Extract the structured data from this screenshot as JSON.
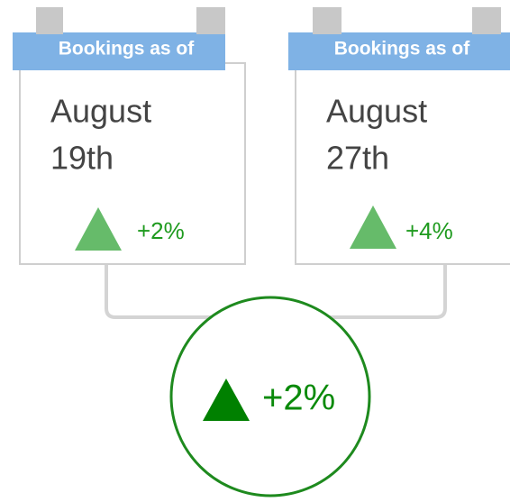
{
  "cards": [
    {
      "header": "Bookings as of",
      "month": "August",
      "day": "19th",
      "change": "+2%"
    },
    {
      "header": "Bookings as of",
      "month": "August",
      "day": "27th",
      "change": "+4%"
    }
  ],
  "summary": {
    "change": "+2%"
  }
}
